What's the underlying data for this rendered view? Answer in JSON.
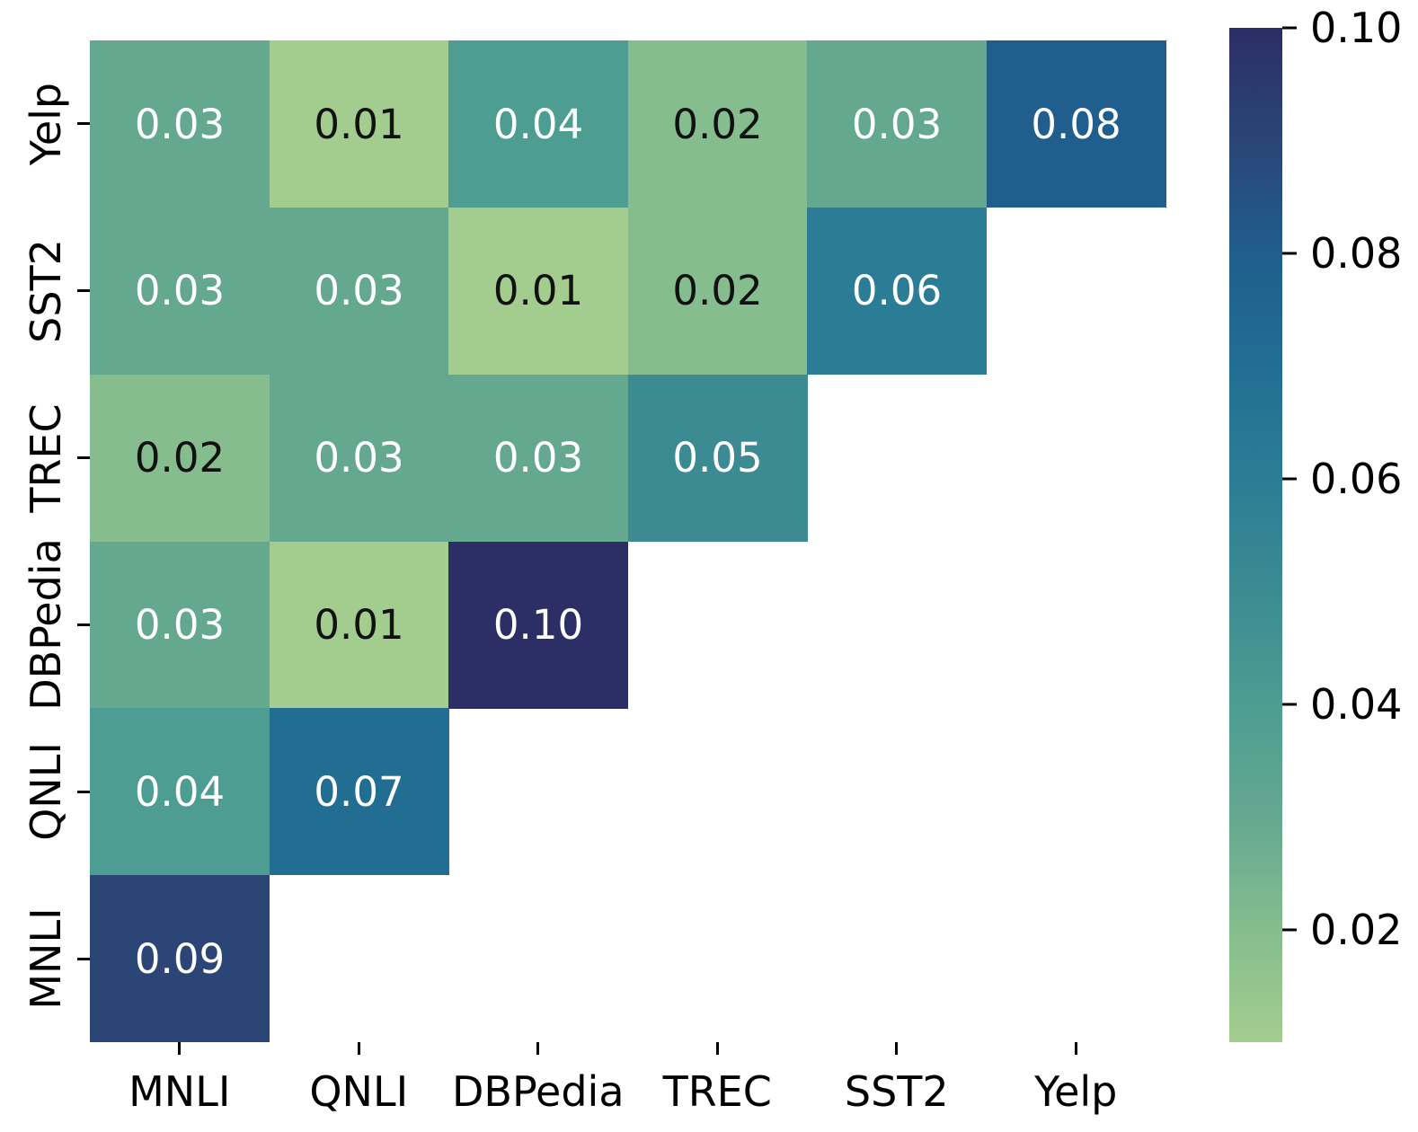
{
  "chart_data": {
    "type": "heatmap",
    "title": "",
    "xlabel": "",
    "ylabel": "",
    "x_labels": [
      "MNLI",
      "QNLI",
      "DBPedia",
      "TREC",
      "SST2",
      "Yelp"
    ],
    "y_labels": [
      "Yelp",
      "SST2",
      "TREC",
      "DBPedia",
      "QNLI",
      "MNLI"
    ],
    "matrix": [
      [
        0.03,
        0.01,
        0.04,
        0.02,
        0.03,
        0.08
      ],
      [
        0.03,
        0.03,
        0.01,
        0.02,
        0.06,
        null
      ],
      [
        0.02,
        0.03,
        0.03,
        0.05,
        null,
        null
      ],
      [
        0.03,
        0.01,
        0.1,
        null,
        null,
        null
      ],
      [
        0.04,
        0.07,
        null,
        null,
        null,
        null
      ],
      [
        0.09,
        null,
        null,
        null,
        null,
        null
      ]
    ],
    "shape": "lower-left-triangle",
    "annotation_format": "two-decimals",
    "cell_colors": {
      "0.01": "#a3cd8e",
      "0.02": "#85bd8e",
      "0.03": "#64a890",
      "0.04": "#4d9d92",
      "0.05": "#3c8b92",
      "0.06": "#2b7d95",
      "0.07": "#226e93",
      "0.08": "#1f5e8d",
      "0.09": "#2a4576",
      "0.10": "#2c2e66"
    },
    "annotation_text_dark": "#111111",
    "annotation_text_light": "#ffffff",
    "light_text_min_value": 0.03,
    "colormap_name": "crest",
    "grid": false,
    "colorbar": {
      "vmin": 0.01,
      "vmax": 0.1,
      "tick_labels": [
        "0.10",
        "0.08",
        "0.06",
        "0.04",
        "0.02"
      ],
      "orientation": "vertical",
      "position": "right"
    }
  }
}
